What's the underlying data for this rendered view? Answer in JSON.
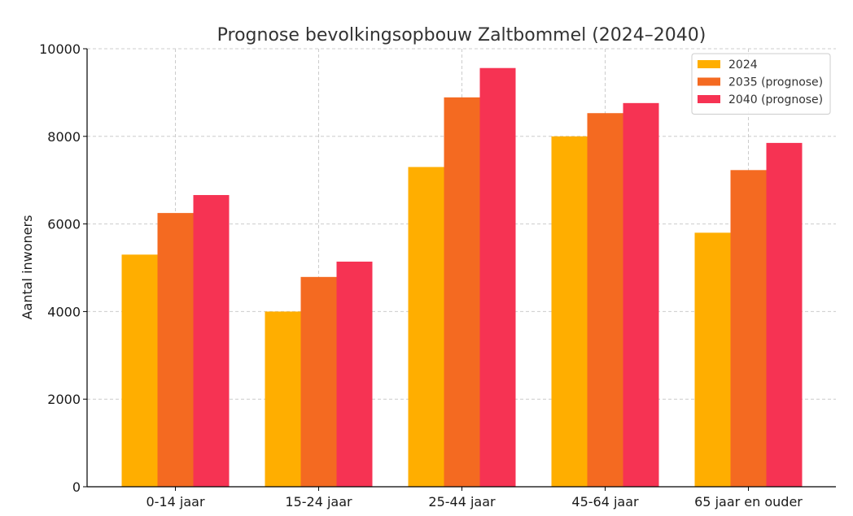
{
  "chart_data": {
    "type": "bar",
    "title": "Prognose bevolkingsopbouw Zaltbommel (2024–2040)",
    "xlabel": "",
    "ylabel": "Aantal inwoners",
    "categories": [
      "0-14 jaar",
      "15-24 jaar",
      "25-44 jaar",
      "45-64 jaar",
      "65 jaar en ouder"
    ],
    "series": [
      {
        "name": "2024",
        "color": "#FFAE00",
        "values": [
          5300,
          4000,
          7300,
          8000,
          5800
        ]
      },
      {
        "name": "2035 (prognose)",
        "color": "#F46A21",
        "values": [
          6250,
          4790,
          8890,
          8530,
          7230
        ]
      },
      {
        "name": "2040 (prognose)",
        "color": "#F63353",
        "values": [
          6660,
          5140,
          9560,
          8760,
          7850
        ]
      }
    ],
    "ylim": [
      0,
      10000
    ],
    "yticks": [
      "0",
      "2000",
      "4000",
      "6000",
      "8000",
      "10000"
    ],
    "grid": true,
    "legend_position": "top-right"
  }
}
